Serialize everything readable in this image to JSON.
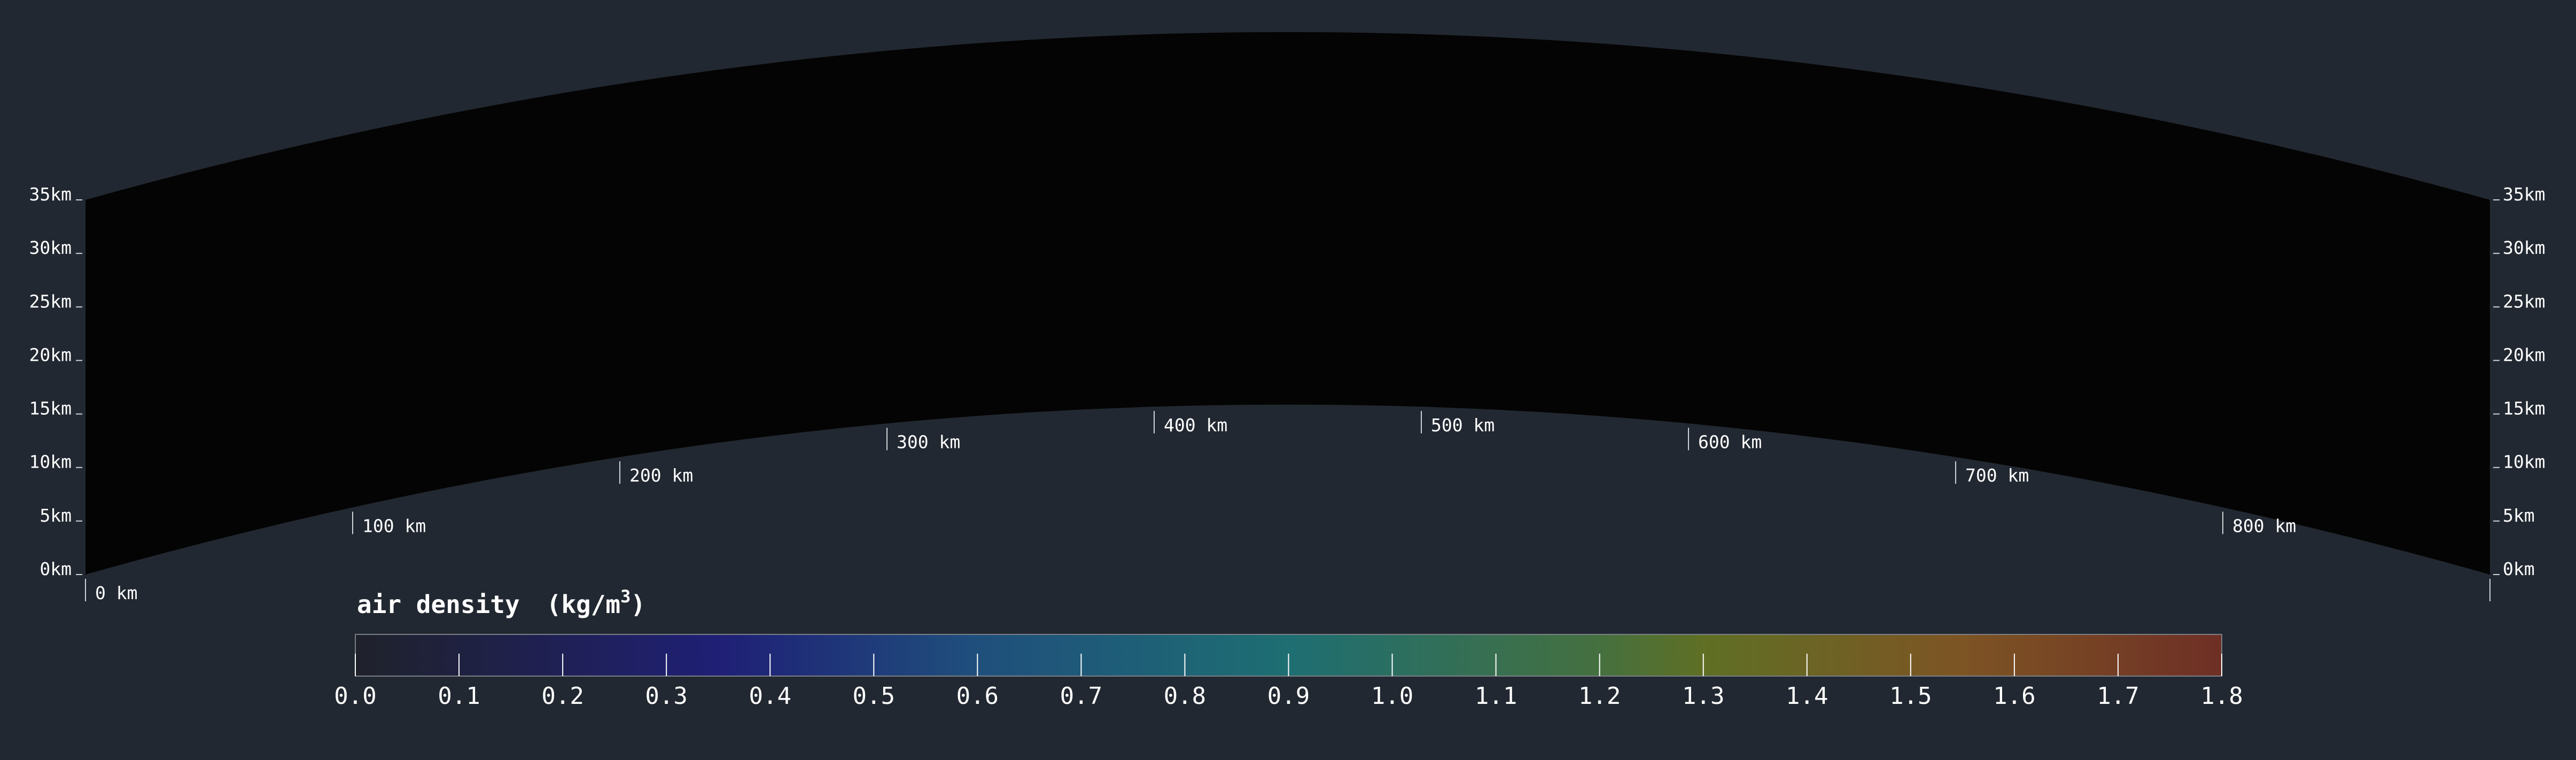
{
  "colors": {
    "background": "#222831",
    "panel": "#040404",
    "axis": "#cfd3d8",
    "text": "#ffffff"
  },
  "chart_data": {
    "type": "heatmap",
    "title": "",
    "xlabel": "",
    "ylabel": "",
    "altitude_ticks_km": [
      0,
      5,
      10,
      15,
      20,
      25,
      30,
      35
    ],
    "altitude_tick_labels": [
      "0km",
      "5km",
      "10km",
      "15km",
      "20km",
      "25km",
      "30km",
      "35km"
    ],
    "distance_ticks_km": [
      0,
      100,
      200,
      300,
      400,
      500,
      600,
      700,
      800
    ],
    "distance_tick_labels": [
      "0 km",
      "100 km",
      "200 km",
      "300 km",
      "400 km",
      "500 km",
      "600 km",
      "700 km",
      "800 km"
    ],
    "xlim_km": [
      0,
      900
    ],
    "ylim_km": [
      0,
      35
    ],
    "field_values": "none (panel rendered black)",
    "colorbar": {
      "title_main": "air density",
      "title_unit_base": "(kg/m",
      "title_unit_sup": "3",
      "title_unit_close": ")",
      "range": [
        0.0,
        1.8
      ],
      "ticks": [
        0.0,
        0.1,
        0.2,
        0.3,
        0.4,
        0.5,
        0.6,
        0.7,
        0.8,
        0.9,
        1.0,
        1.1,
        1.2,
        1.3,
        1.4,
        1.5,
        1.6,
        1.7,
        1.8
      ],
      "tick_labels": [
        "0.0",
        "0.1",
        "0.2",
        "0.3",
        "0.4",
        "0.5",
        "0.6",
        "0.7",
        "0.8",
        "0.9",
        "1.0",
        "1.1",
        "1.2",
        "1.3",
        "1.4",
        "1.5",
        "1.6",
        "1.7",
        "1.8"
      ],
      "colormap_stops": [
        {
          "value": 0.0,
          "color": "#1f222a"
        },
        {
          "value": 0.35,
          "color": "#1f1f76"
        },
        {
          "value": 0.6,
          "color": "#1f4f7c"
        },
        {
          "value": 0.9,
          "color": "#1e6e72"
        },
        {
          "value": 1.2,
          "color": "#45703f"
        },
        {
          "value": 1.3,
          "color": "#5f6f24"
        },
        {
          "value": 1.55,
          "color": "#7d5424"
        },
        {
          "value": 1.8,
          "color": "#6e2f25"
        }
      ]
    }
  }
}
